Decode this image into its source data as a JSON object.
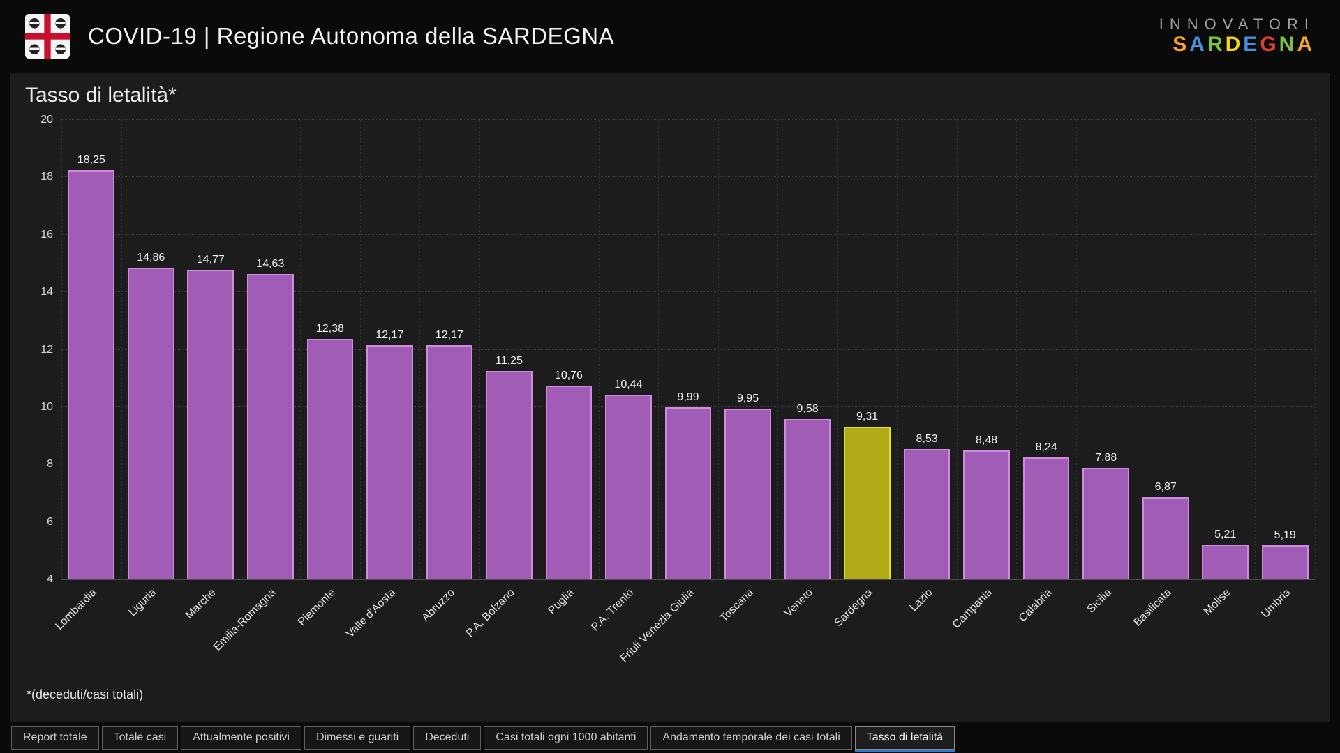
{
  "header": {
    "title": "COVID-19 | Regione Autonoma della SARDEGNA",
    "logo_icon": "sardinia-flag-icon",
    "brand": {
      "line1": "INNOVATORI",
      "line2_letters": [
        {
          "ch": "S",
          "color": "#f5a623"
        },
        {
          "ch": "A",
          "color": "#4a90d9"
        },
        {
          "ch": "R",
          "color": "#7ac143"
        },
        {
          "ch": "D",
          "color": "#f2d51c"
        },
        {
          "ch": "E",
          "color": "#4a90d9"
        },
        {
          "ch": "G",
          "color": "#e0402a"
        },
        {
          "ch": "N",
          "color": "#7ac143"
        },
        {
          "ch": "A",
          "color": "#f5a623"
        }
      ]
    }
  },
  "chart_data": {
    "type": "bar",
    "title": "Tasso di letalità*",
    "footnote": "*(deceduti/casi totali)",
    "categories": [
      "Lombardia",
      "Liguria",
      "Marche",
      "Emilia-Romagna",
      "Piemonte",
      "Valle d'Aosta",
      "Abruzzo",
      "P.A. Bolzano",
      "Puglia",
      "P.A. Trento",
      "Friuli Venezia Giulia",
      "Toscana",
      "Veneto",
      "Sardegna",
      "Lazio",
      "Campania",
      "Calabria",
      "Sicilia",
      "Basilicata",
      "Molise",
      "Umbria"
    ],
    "values": [
      18.25,
      14.86,
      14.77,
      14.63,
      12.38,
      12.17,
      12.17,
      11.25,
      10.76,
      10.44,
      9.99,
      9.95,
      9.58,
      9.31,
      8.53,
      8.48,
      8.24,
      7.88,
      6.87,
      5.21,
      5.19
    ],
    "value_labels": [
      "18,25",
      "14,86",
      "14,77",
      "14,63",
      "12,38",
      "12,17",
      "12,17",
      "11,25",
      "10,76",
      "10,44",
      "9,99",
      "9,95",
      "9,58",
      "9,31",
      "8,53",
      "8,48",
      "8,24",
      "7,88",
      "6,87",
      "5,21",
      "5,19"
    ],
    "ylim": [
      4,
      20
    ],
    "yticks": [
      4,
      6,
      8,
      10,
      12,
      14,
      16,
      18,
      20
    ],
    "grid": true,
    "legend": "none",
    "highlight_category": "Sardegna",
    "colors": {
      "bar_fill": "#a15cb5",
      "bar_border": "#cf8add",
      "highlight_fill": "#b2aa17",
      "highlight_border": "#e0da45"
    }
  },
  "tabs": {
    "active_color": "#2c7bd0",
    "items": [
      {
        "label": "Report totale",
        "active": false
      },
      {
        "label": "Totale casi",
        "active": false
      },
      {
        "label": "Attualmente positivi",
        "active": false
      },
      {
        "label": "Dimessi e guariti",
        "active": false
      },
      {
        "label": "Deceduti",
        "active": false
      },
      {
        "label": "Casi totali ogni 1000 abitanti",
        "active": false
      },
      {
        "label": "Andamento temporale dei casi totali",
        "active": false
      },
      {
        "label": "Tasso di letalità",
        "active": true
      }
    ]
  }
}
